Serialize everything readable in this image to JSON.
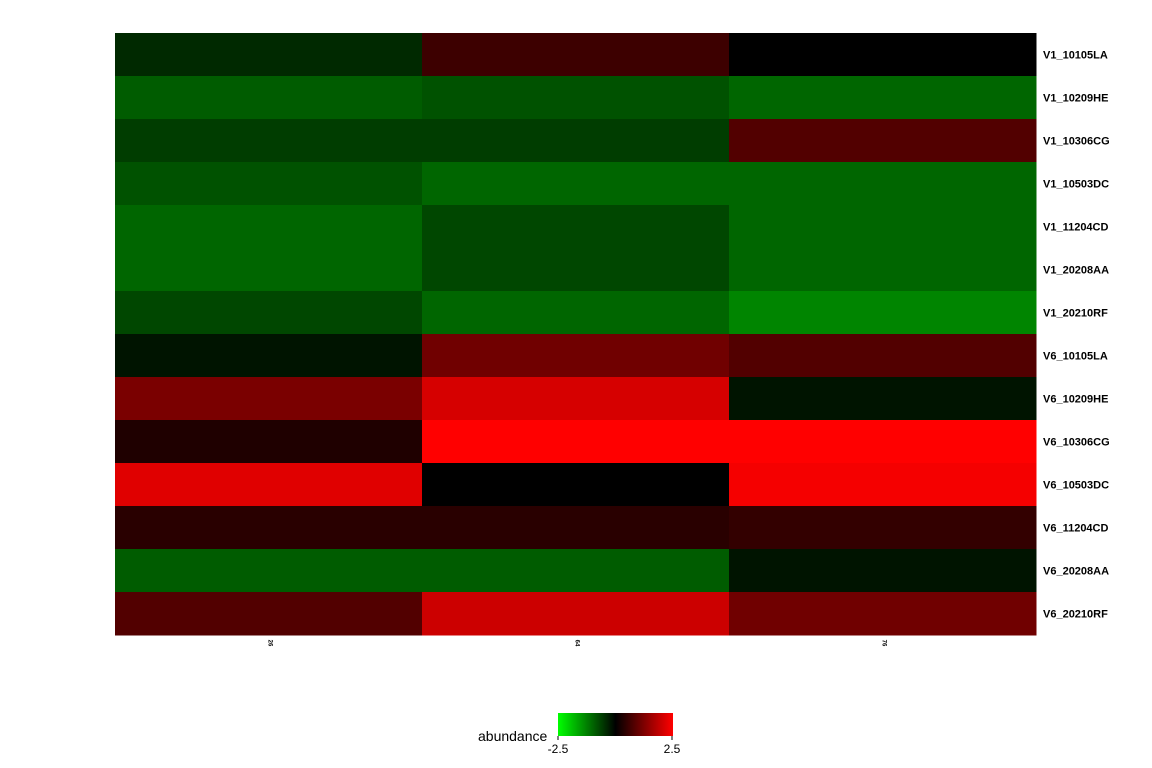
{
  "chart_data": {
    "type": "heatmap",
    "columns": [
      "26",
      "64",
      "76"
    ],
    "rows": [
      "V1_10105LA",
      "V1_10209HE",
      "V1_10306CG",
      "V1_10503DC",
      "V1_11204CD",
      "V1_20208AA",
      "V1_20210RF",
      "V6_10105LA",
      "V6_10209HE",
      "V6_10306CG",
      "V6_10503DC",
      "V6_11204CD",
      "V6_20208AA",
      "V6_20210RF"
    ],
    "values": [
      [
        -0.4,
        0.6,
        0.0
      ],
      [
        -0.9,
        -0.8,
        -1.0
      ],
      [
        -0.6,
        -0.6,
        0.8
      ],
      [
        -0.8,
        -1.0,
        -1.0
      ],
      [
        -1.0,
        -0.7,
        -1.0
      ],
      [
        -1.0,
        -0.7,
        -1.0
      ],
      [
        -0.7,
        -1.0,
        -1.3
      ],
      [
        -0.2,
        1.1,
        0.8
      ],
      [
        1.2,
        2.1,
        -0.2
      ],
      [
        0.3,
        2.5,
        2.5
      ],
      [
        2.2,
        0.0,
        2.4
      ],
      [
        0.4,
        0.4,
        0.5
      ],
      [
        -0.9,
        -0.9,
        -0.2
      ],
      [
        0.8,
        2.0,
        1.1
      ]
    ],
    "legend": {
      "title": "abundance",
      "min_label": "-2.5",
      "max_label": "2.5",
      "range": [
        -2.5,
        2.5
      ],
      "low_color": "#00ff00",
      "mid_color": "#000000",
      "high_color": "#ff0000",
      "placement": "bottom-center"
    }
  }
}
